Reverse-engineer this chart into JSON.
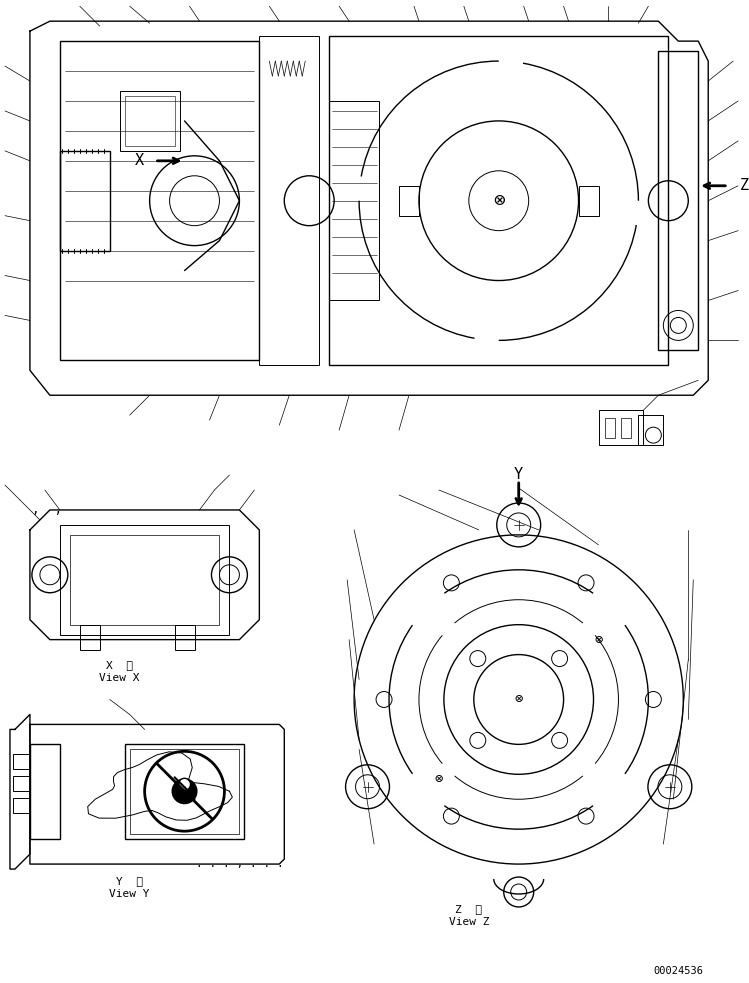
{
  "bg_color": "#ffffff",
  "line_color": "#000000",
  "fig_width": 7.49,
  "fig_height": 9.83,
  "dpi": 100,
  "part_number": "00024536",
  "label_X": "X",
  "label_Y": "Y",
  "label_Z": "Z",
  "view_x_text": [
    "X  視",
    "View X"
  ],
  "view_y_text": [
    "Y  視",
    "View Y"
  ],
  "view_z_text": [
    "Z  視",
    "View Z"
  ]
}
